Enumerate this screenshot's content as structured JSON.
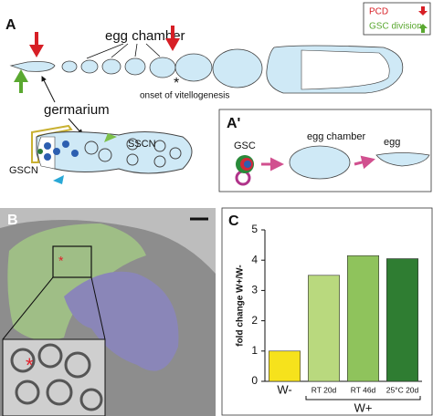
{
  "panel_labels": {
    "a": "A",
    "a_prime": "A'",
    "b": "B",
    "c": "C"
  },
  "legend": {
    "pcd": "PCD",
    "gsc_division": "GSC division"
  },
  "panel_a": {
    "egg_chamber": "egg chamber",
    "onset": "onset of vitellogenesis",
    "asterisk": "*",
    "germarium": "germarium",
    "sscn": "SSCN",
    "gscn": "GSCN"
  },
  "panel_a_prime": {
    "gsc": "GSC",
    "egg_chamber": "egg chamber",
    "egg": "egg"
  },
  "panel_b": {
    "asterisk": "*"
  },
  "chart_data": {
    "type": "bar",
    "y_label": "fold change W+/W-",
    "categories": [
      "W-",
      "RT 20d",
      "RT 46d",
      "25°C 20d"
    ],
    "values": [
      1,
      3.5,
      4.15,
      4.05
    ],
    "colors": [
      "#f6e21c",
      "#b9d97e",
      "#8fc35c",
      "#2f7d32"
    ],
    "group_label": "W+",
    "ylim": [
      0,
      5
    ],
    "yticks": [
      0,
      1,
      2,
      3,
      4,
      5
    ]
  }
}
